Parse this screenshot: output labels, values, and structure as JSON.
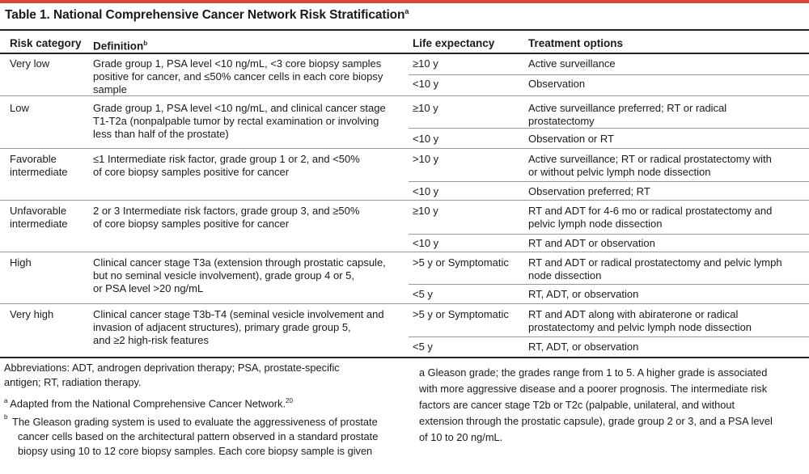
{
  "table": {
    "title": "Table 1. National Comprehensive Cancer Network Risk Stratification",
    "title_sup": "a",
    "headers": {
      "risk": "Risk category",
      "definition": "Definition",
      "definition_sup": "b",
      "life": "Life expectancy",
      "treatment": "Treatment options"
    },
    "rows": [
      {
        "category": [
          "Very low"
        ],
        "definition": [
          "Grade group 1, PSA level <10 ng/mL, <3 core biopsy samples",
          "positive for cancer, and ≤50% cancer cells in each core biopsy",
          "sample"
        ],
        "options": [
          {
            "life": "≥10 y",
            "treatment": [
              "Active surveillance"
            ]
          },
          {
            "life": "<10 y",
            "treatment": [
              "Observation"
            ]
          }
        ]
      },
      {
        "category": [
          "Low"
        ],
        "definition": [
          "Grade group 1, PSA level <10 ng/mL, and clinical cancer stage",
          "T1-T2a (nonpalpable tumor by rectal examination or involving",
          "less than half of the prostate)"
        ],
        "options": [
          {
            "life": "≥10 y",
            "treatment": [
              "Active surveillance preferred; RT or radical",
              "prostatectomy"
            ]
          },
          {
            "life": "<10 y",
            "treatment": [
              "Observation or RT"
            ]
          }
        ]
      },
      {
        "category": [
          "Favorable",
          "intermediate"
        ],
        "definition": [
          "≤1 Intermediate risk factor, grade group 1 or 2, and <50%",
          "of core biopsy samples positive for cancer"
        ],
        "options": [
          {
            "life": ">10 y",
            "treatment": [
              "Active surveillance; RT or radical prostatectomy with",
              "or without pelvic lymph node dissection"
            ]
          },
          {
            "life": "<10 y",
            "treatment": [
              "Observation preferred; RT"
            ]
          }
        ]
      },
      {
        "category": [
          "Unfavorable",
          "intermediate"
        ],
        "definition": [
          "2 or 3 Intermediate risk factors, grade group 3, and ≥50%",
          "of core biopsy samples positive for cancer"
        ],
        "options": [
          {
            "life": "≥10 y",
            "treatment": [
              "RT and ADT for 4-6 mo or radical prostatectomy and",
              "pelvic lymph node dissection"
            ]
          },
          {
            "life": "<10 y",
            "treatment": [
              "RT and ADT or observation"
            ]
          }
        ]
      },
      {
        "category": [
          "High"
        ],
        "definition": [
          "Clinical cancer stage T3a (extension through prostatic capsule,",
          "but no seminal vesicle involvement), grade group 4 or 5,",
          "or PSA level >20 ng/mL"
        ],
        "options": [
          {
            "life": ">5 y or Symptomatic",
            "treatment": [
              "RT and ADT or radical prostatectomy and pelvic lymph",
              "node dissection"
            ]
          },
          {
            "life": "<5 y",
            "treatment": [
              "RT, ADT, or observation"
            ]
          }
        ]
      },
      {
        "category": [
          "Very high"
        ],
        "definition": [
          "Clinical cancer stage T3b-T4 (seminal vesicle involvement and",
          "invasion of adjacent structures), primary grade group 5,",
          "and ≥2 high-risk features"
        ],
        "options": [
          {
            "life": ">5 y or Symptomatic",
            "treatment": [
              "RT and ADT along with abiraterone or radical",
              "prostatectomy and pelvic lymph node dissection"
            ]
          },
          {
            "life": "<5 y",
            "treatment": [
              "RT, ADT, or observation"
            ]
          }
        ]
      }
    ]
  },
  "footnotes": {
    "abbreviations": [
      "Abbreviations: ADT, androgen deprivation therapy; PSA, prostate-specific",
      "antigen; RT, radiation therapy."
    ],
    "a_mark": "a",
    "a_text": "Adapted from the National Comprehensive Cancer Network.",
    "a_ref": "20",
    "b_mark": "b",
    "b_left": [
      "The Gleason grading system is used to evaluate the aggressiveness of prostate",
      "cancer cells based on the architectural pattern observed in a standard prostate",
      "biopsy using 10 to 12 core biopsy samples. Each core biopsy sample is given"
    ],
    "b_right": [
      "a Gleason grade; the grades range from 1 to 5. A higher grade is associated",
      "with more aggressive disease and a poorer prognosis. The intermediate risk",
      "factors are cancer stage T2b or T2c (palpable, unilateral, and without",
      "extension through the prostatic capsule), grade group 2 or 3, and a PSA level",
      "of 10 to 20 ng/mL."
    ]
  }
}
